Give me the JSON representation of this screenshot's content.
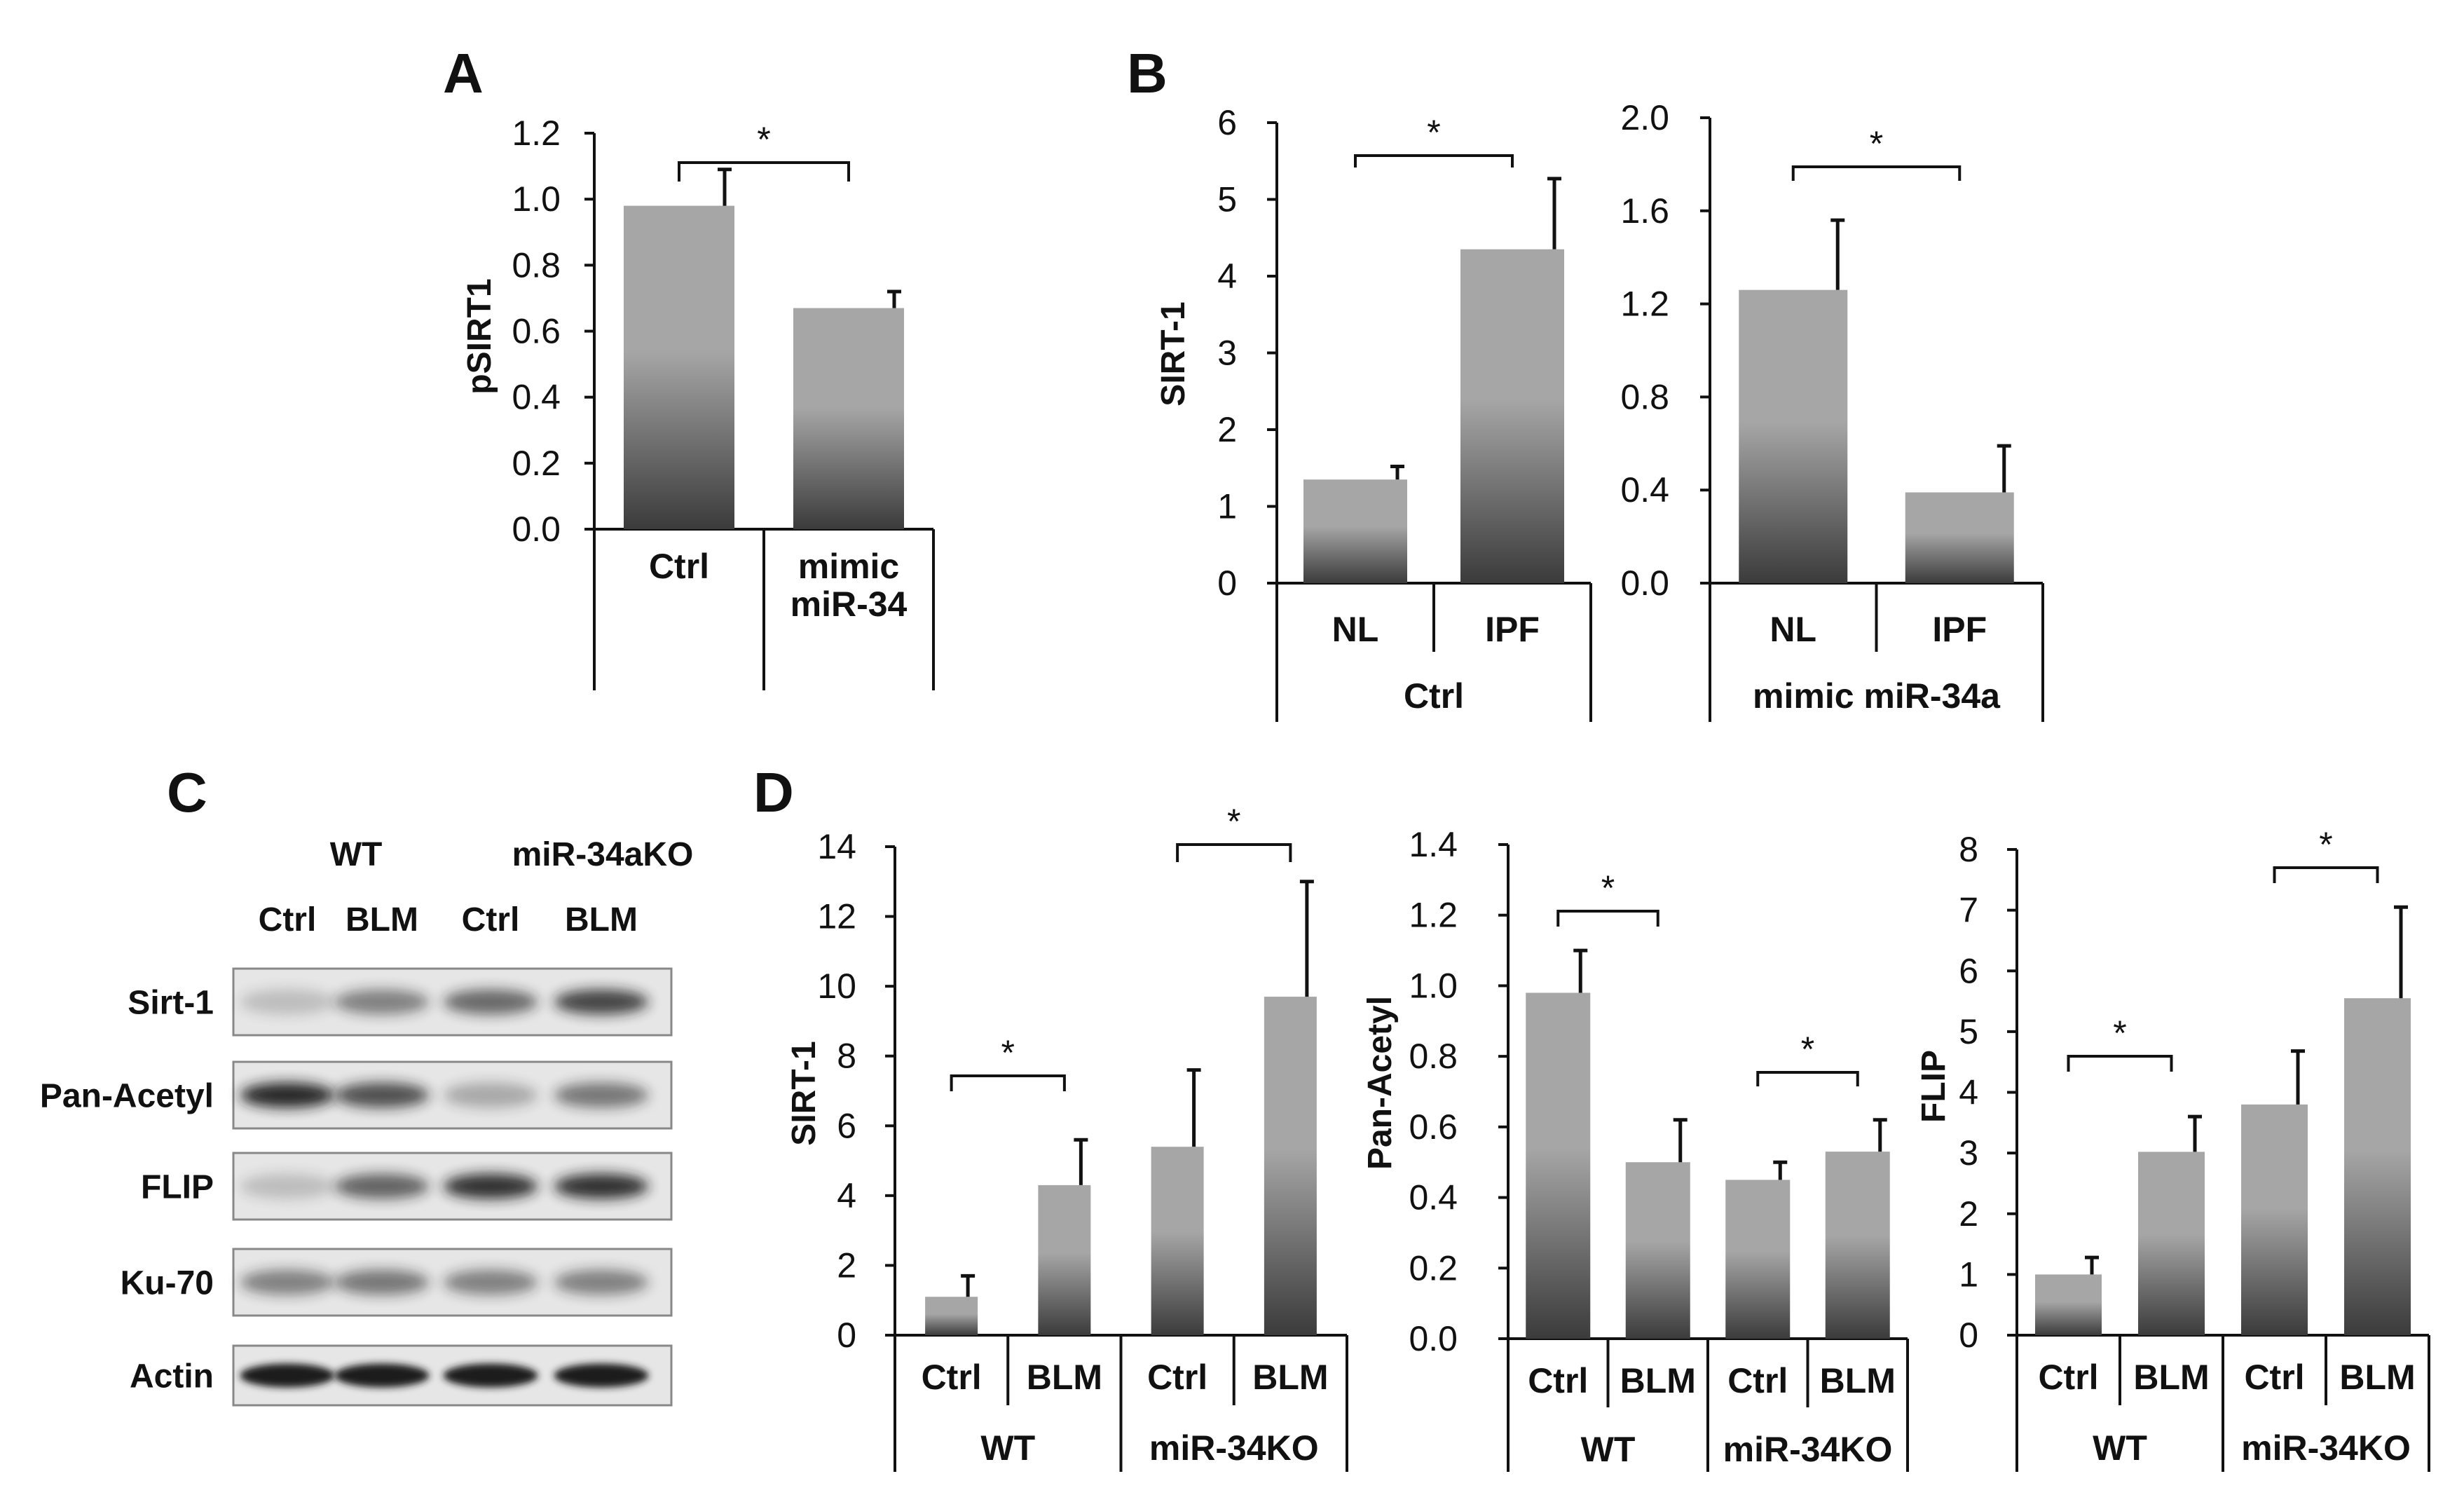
{
  "chart_data": [
    {
      "panel": "A",
      "type": "bar",
      "ylabel": "pSIRT1",
      "ylim": [
        0,
        1.2
      ],
      "yticks": [
        "0.0",
        "0.2",
        "0.4",
        "0.6",
        "0.8",
        "1.0",
        "1.2"
      ],
      "categories": [
        "Ctrl",
        "mimic\nmiR-34"
      ],
      "values": [
        0.98,
        0.67
      ],
      "errors": [
        0.11,
        0.05
      ],
      "groups": [],
      "significance": [
        {
          "from": 0,
          "to": 1,
          "label": "*"
        }
      ]
    },
    {
      "panel": "B",
      "type": "bar",
      "ylabel": "SIRT-1",
      "ylim": [
        0,
        6
      ],
      "yticks": [
        "0",
        "1",
        "2",
        "3",
        "4",
        "5",
        "6"
      ],
      "categories": [
        "NL",
        "IPF"
      ],
      "values": [
        1.35,
        4.35
      ],
      "errors": [
        0.17,
        0.92
      ],
      "groups": [
        {
          "label": "Ctrl",
          "from": 0,
          "to": 1
        }
      ],
      "significance": [
        {
          "from": 0,
          "to": 1,
          "label": "*"
        }
      ]
    },
    {
      "panel": "B2",
      "type": "bar",
      "ylabel": "",
      "ylim": [
        0,
        2.0
      ],
      "yticks": [
        "0.0",
        "0.4",
        "0.8",
        "1.2",
        "1.6",
        "2.0"
      ],
      "categories": [
        "NL",
        "IPF"
      ],
      "values": [
        1.26,
        0.39
      ],
      "errors": [
        0.3,
        0.2
      ],
      "groups": [
        {
          "label": "mimic miR-34a",
          "from": 0,
          "to": 1
        }
      ],
      "significance": [
        {
          "from": 0,
          "to": 1,
          "label": "*"
        }
      ]
    },
    {
      "panel": "D",
      "type": "bar",
      "ylabel": "SIRT-1",
      "ylim": [
        0,
        14
      ],
      "yticks": [
        "0",
        "2",
        "4",
        "6",
        "8",
        "10",
        "12",
        "14"
      ],
      "categories": [
        "Ctrl",
        "BLM",
        "Ctrl",
        "BLM"
      ],
      "values": [
        1.1,
        4.3,
        5.4,
        9.7
      ],
      "errors": [
        0.6,
        1.3,
        2.2,
        3.3
      ],
      "groups": [
        {
          "label": "WT",
          "from": 0,
          "to": 1
        },
        {
          "label": "miR-34KO",
          "from": 2,
          "to": 3
        }
      ],
      "significance": [
        {
          "from": 0,
          "to": 1,
          "label": "*"
        },
        {
          "from": 2,
          "to": 3,
          "label": "*"
        }
      ]
    },
    {
      "panel": "D2",
      "type": "bar",
      "ylabel": "Pan-Acetyl",
      "ylim": [
        0,
        1.4
      ],
      "yticks": [
        "0.0",
        "0.2",
        "0.4",
        "0.6",
        "0.8",
        "1.0",
        "1.2",
        "1.4"
      ],
      "categories": [
        "Ctrl",
        "BLM",
        "Ctrl",
        "BLM"
      ],
      "values": [
        0.98,
        0.5,
        0.45,
        0.53
      ],
      "errors": [
        0.12,
        0.12,
        0.05,
        0.09
      ],
      "groups": [
        {
          "label": "WT",
          "from": 0,
          "to": 1
        },
        {
          "label": "miR-34KO",
          "from": 2,
          "to": 3
        }
      ],
      "significance": [
        {
          "from": 0,
          "to": 1,
          "label": "*"
        },
        {
          "from": 2,
          "to": 3,
          "label": "*"
        }
      ]
    },
    {
      "panel": "D3",
      "type": "bar",
      "ylabel": "FLIP",
      "ylim": [
        0,
        8
      ],
      "yticks": [
        "0",
        "1",
        "2",
        "3",
        "4",
        "5",
        "6",
        "7",
        "8"
      ],
      "categories": [
        "Ctrl",
        "BLM",
        "Ctrl",
        "BLM"
      ],
      "values": [
        1.0,
        3.02,
        3.8,
        5.55
      ],
      "errors": [
        0.28,
        0.58,
        0.88,
        1.5
      ],
      "groups": [
        {
          "label": "WT",
          "from": 0,
          "to": 1
        },
        {
          "label": "miR-34KO",
          "from": 2,
          "to": 3
        }
      ],
      "significance": [
        {
          "from": 0,
          "to": 1,
          "label": "*"
        },
        {
          "from": 2,
          "to": 3,
          "label": "*"
        }
      ]
    }
  ],
  "panel_labels": {
    "A": "A",
    "B": "B",
    "C": "C",
    "D": "D"
  },
  "blot": {
    "groups": [
      "WT",
      "miR-34aKO"
    ],
    "lanes": [
      "Ctrl",
      "BLM",
      "Ctrl",
      "BLM"
    ],
    "rows": [
      {
        "label": "Sirt-1",
        "intensity": [
          0.2,
          0.5,
          0.62,
          0.8
        ]
      },
      {
        "label": "Pan-Acetyl",
        "intensity": [
          0.95,
          0.75,
          0.3,
          0.55
        ]
      },
      {
        "label": "FLIP",
        "intensity": [
          0.2,
          0.65,
          0.9,
          0.9
        ]
      },
      {
        "label": "Ku-70",
        "intensity": [
          0.5,
          0.55,
          0.5,
          0.5
        ]
      },
      {
        "label": "Actin",
        "intensity": [
          1.0,
          1.0,
          1.0,
          1.0
        ]
      }
    ]
  },
  "colors": {
    "bar_top": "#a6a6a6",
    "bar_bottom": "#3b3b3b",
    "axis": "#111111",
    "blot_bg": "#e6e6e6",
    "band": "#1a1a1a"
  }
}
